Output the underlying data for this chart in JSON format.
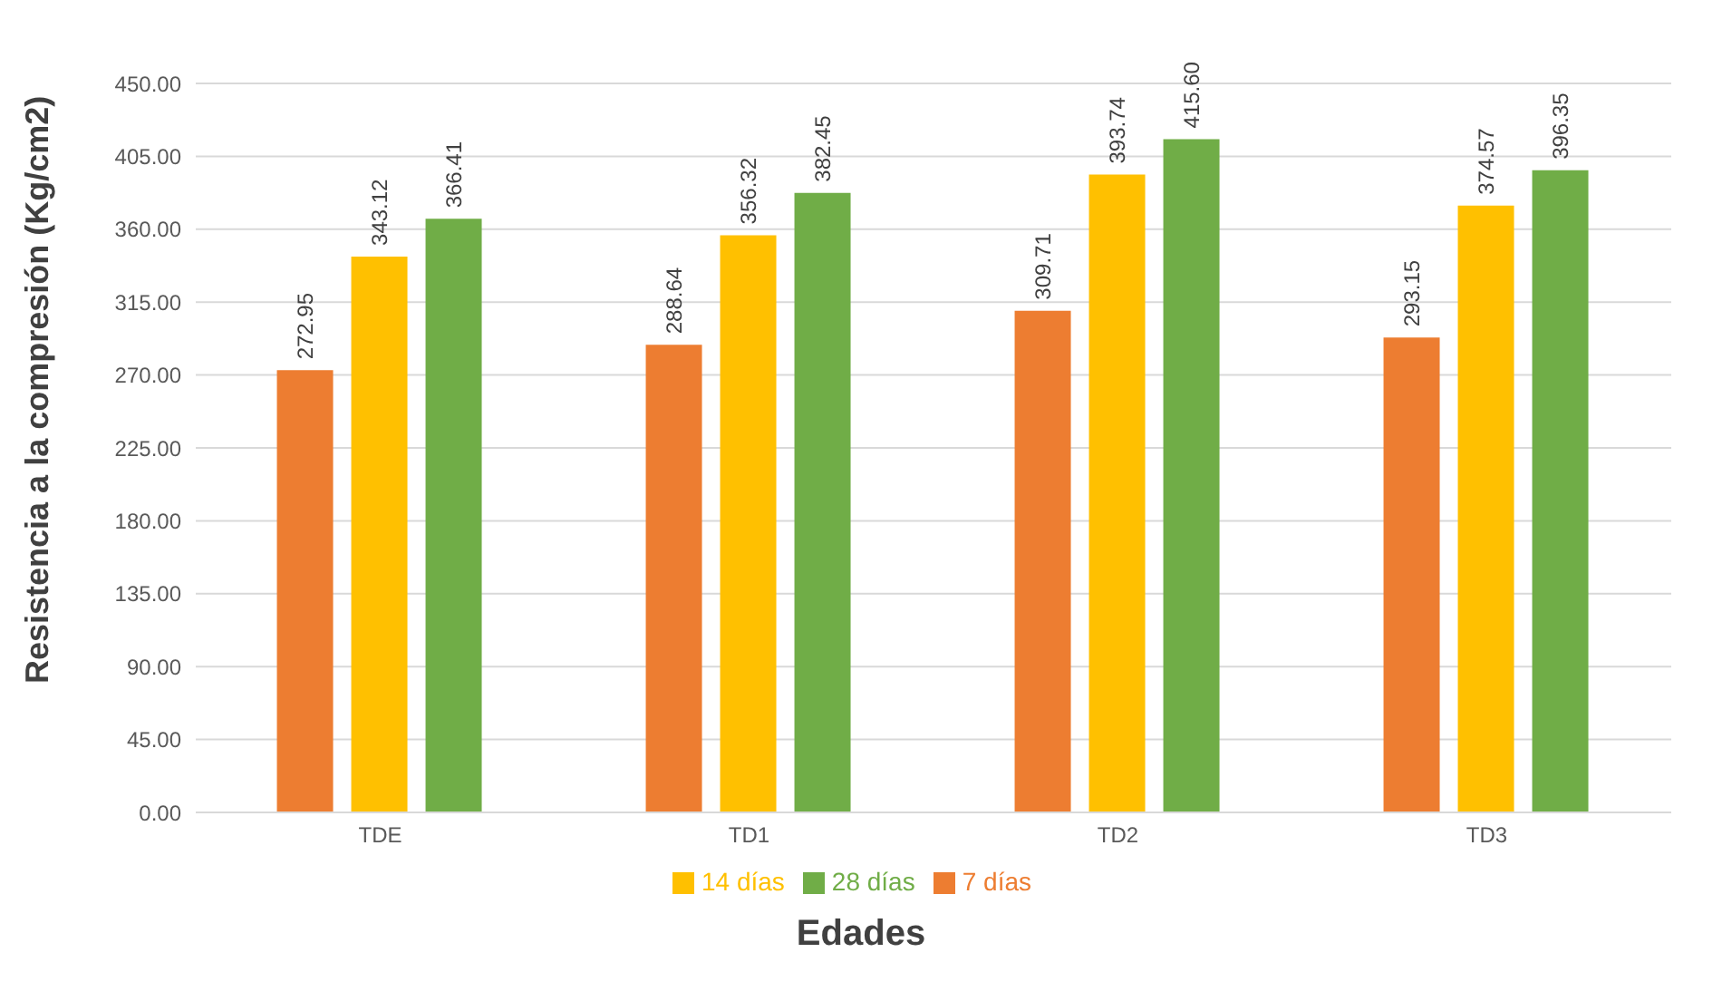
{
  "chart_data": {
    "type": "bar",
    "xlabel": "Edades",
    "ylabel": "Resistencia a la compresión (Kg/cm2)",
    "categories": [
      "TDE",
      "TD1",
      "TD2",
      "TD3"
    ],
    "series": [
      {
        "name": "7 días",
        "color": "#ed7d31",
        "values": [
          272.95,
          288.64,
          309.71,
          293.15
        ],
        "value_labels": [
          "272.95",
          "288.64",
          "309.71",
          "293.15"
        ]
      },
      {
        "name": "14 días",
        "color": "#ffc000",
        "values": [
          343.12,
          356.32,
          393.74,
          374.57
        ],
        "value_labels": [
          "343.12",
          "356.32",
          "393.74",
          "374.57"
        ]
      },
      {
        "name": "28 días",
        "color": "#70ad47",
        "values": [
          366.41,
          382.45,
          415.6,
          396.35
        ],
        "value_labels": [
          "366.41",
          "382.45",
          "415.60",
          "396.35"
        ]
      }
    ],
    "ylim": [
      0,
      450
    ],
    "yticks": [
      {
        "value": 0,
        "label": "0.00"
      },
      {
        "value": 45,
        "label": "45.00"
      },
      {
        "value": 90,
        "label": "90.00"
      },
      {
        "value": 135,
        "label": "135.00"
      },
      {
        "value": 180,
        "label": "180.00"
      },
      {
        "value": 225,
        "label": "225.00"
      },
      {
        "value": 270,
        "label": "270.00"
      },
      {
        "value": 315,
        "label": "315.00"
      },
      {
        "value": 360,
        "label": "360.00"
      },
      {
        "value": 405,
        "label": "405.00"
      },
      {
        "value": 450,
        "label": "450.00"
      }
    ],
    "grid": "y",
    "legend": "bottom"
  }
}
